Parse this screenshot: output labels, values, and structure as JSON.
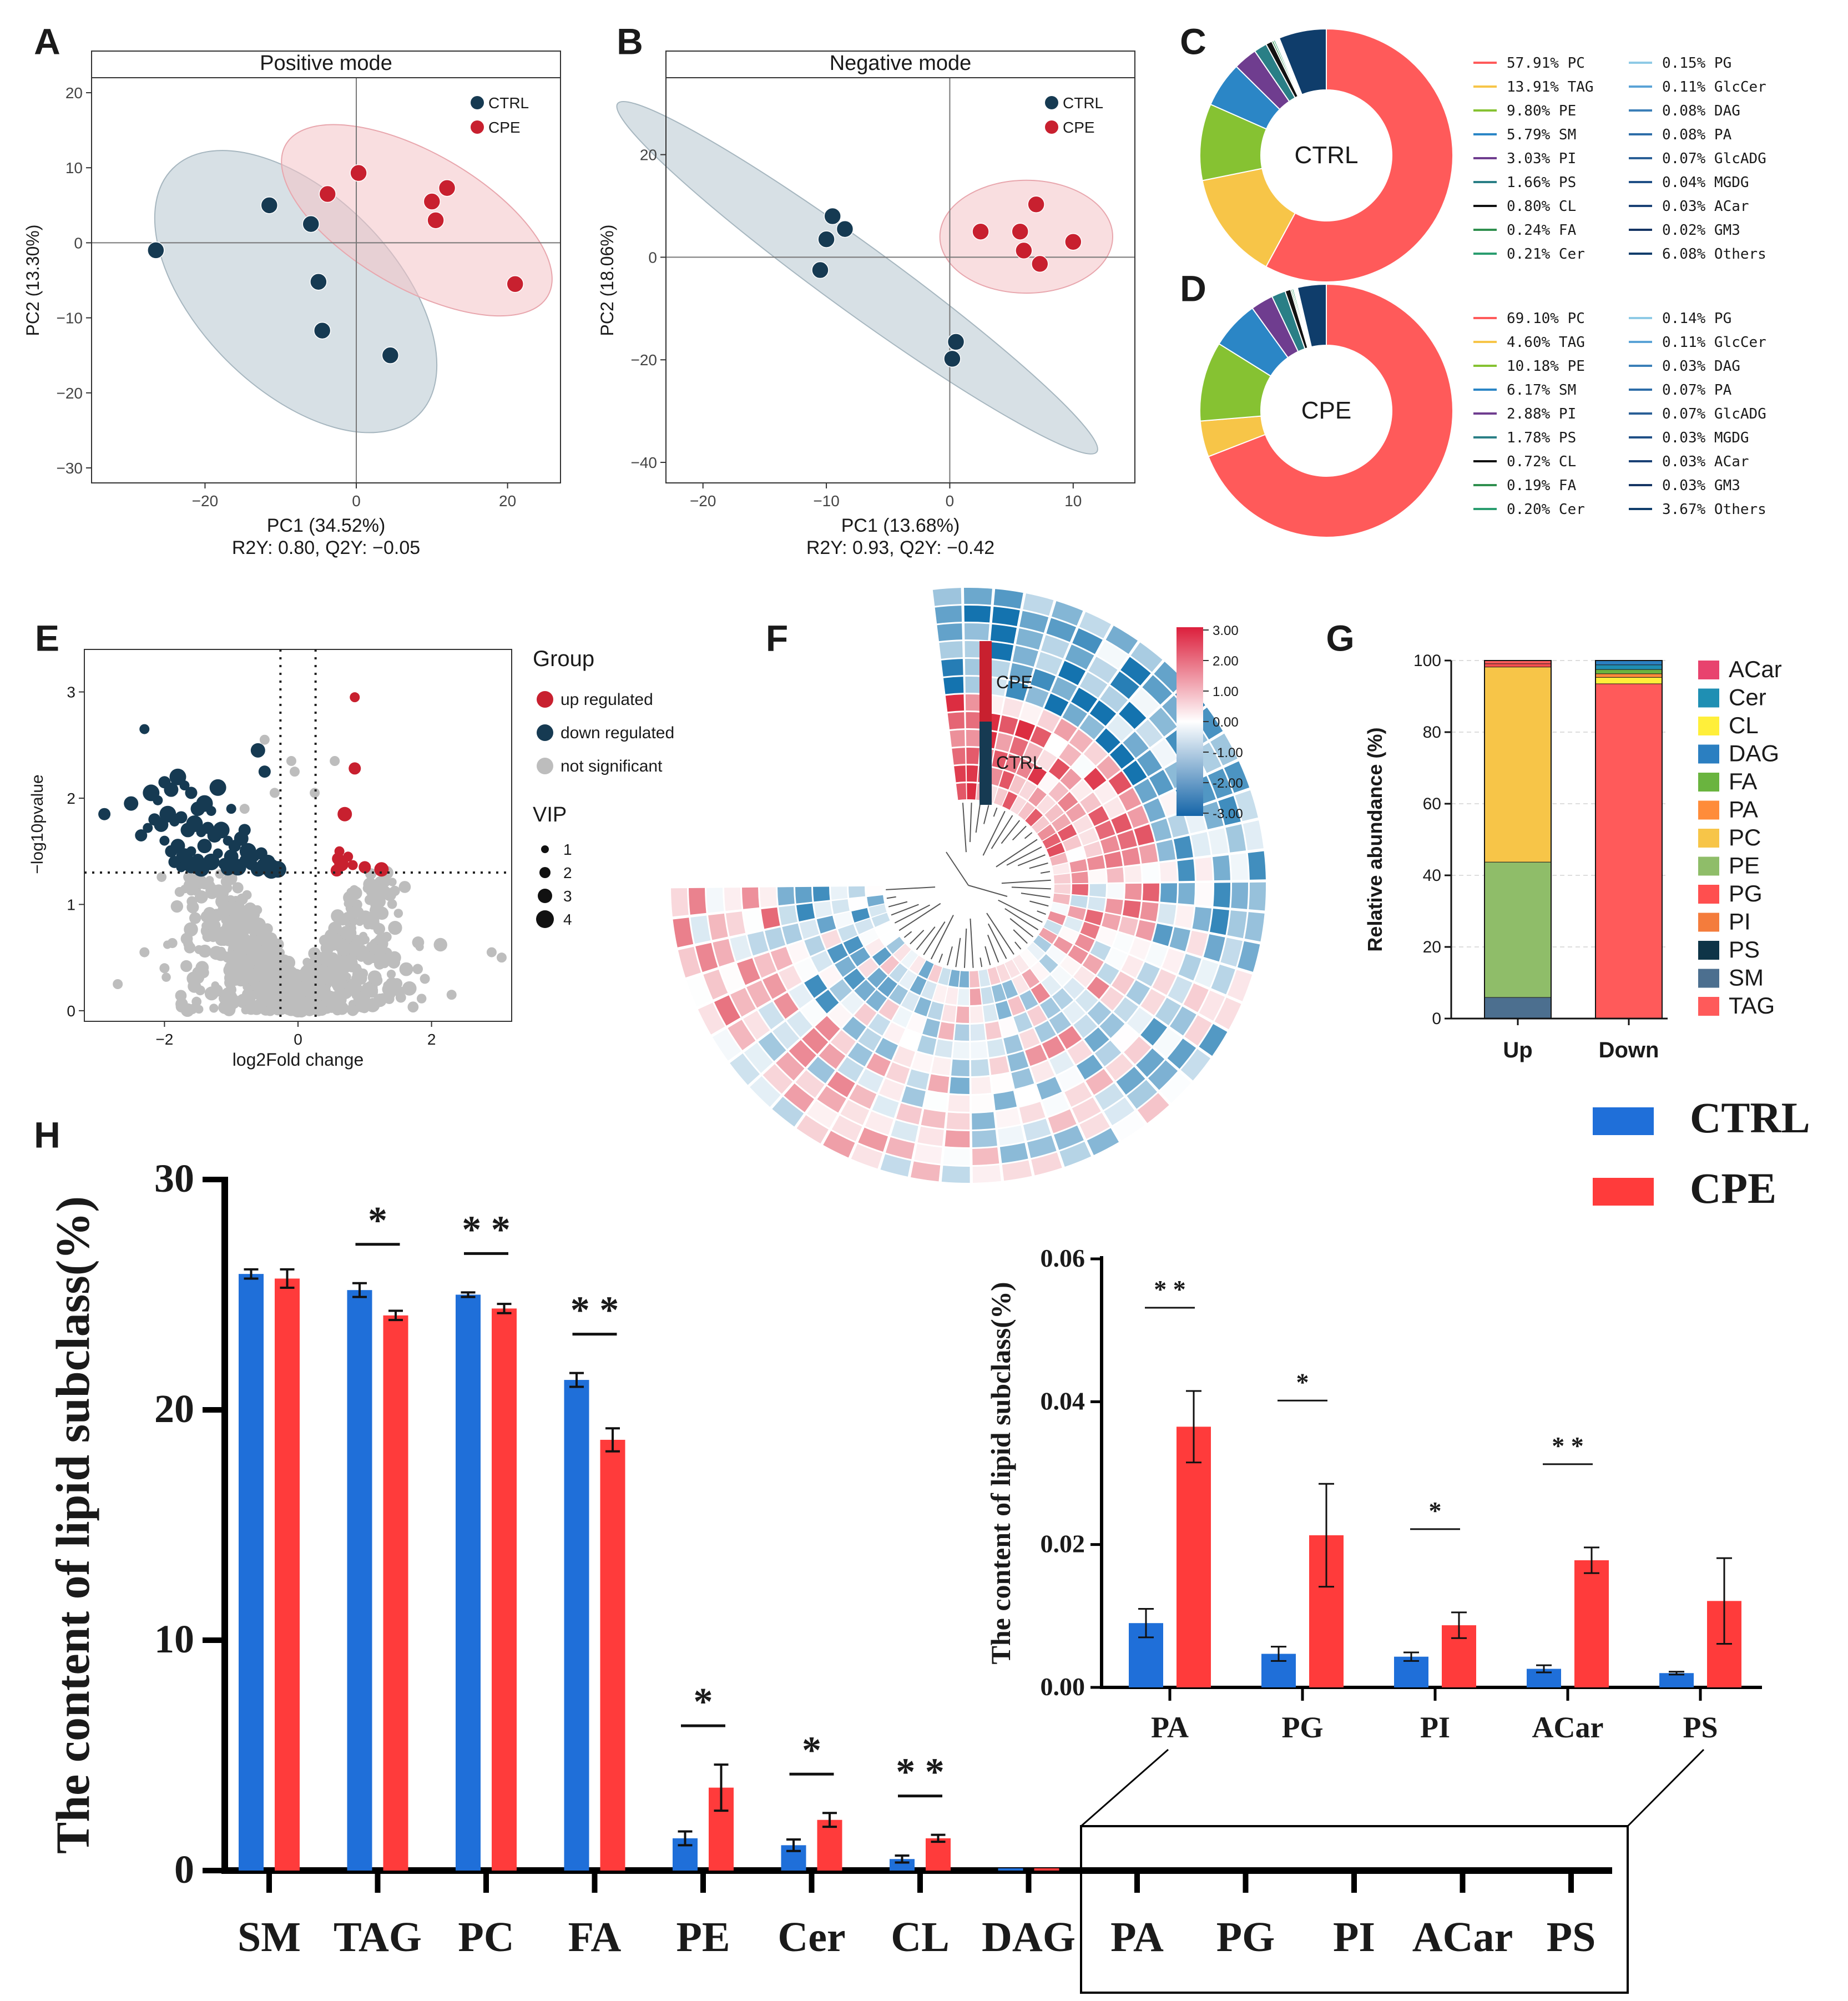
{
  "panel_labels": [
    "A",
    "B",
    "C",
    "D",
    "E",
    "F",
    "G",
    "H"
  ],
  "chart_data": [
    {
      "id": "A",
      "type": "scatter",
      "title": "Positive mode",
      "xlabel": "PC1 (34.52%)",
      "ylabel": "PC2 (13.30%)",
      "subtitle": "R2Y: 0.80, Q2Y: −0.05",
      "xlim": [
        -35,
        27
      ],
      "ylim": [
        -32,
        22
      ],
      "xticks": [
        -20,
        0,
        20
      ],
      "yticks": [
        -30,
        -20,
        -10,
        0,
        10,
        20
      ],
      "legend": [
        "CTRL",
        "CPE"
      ],
      "legend_position": "top-right",
      "colors": {
        "CTRL": "#163a52",
        "CPE": "#c8202f"
      },
      "series": [
        {
          "name": "CTRL",
          "x": [
            -26.5,
            -11.5,
            -6,
            -5,
            -4.5,
            4.5
          ],
          "y": [
            -1,
            5,
            2.5,
            -5.2,
            -11.7,
            -15
          ]
        },
        {
          "name": "CPE",
          "x": [
            -3.8,
            0.3,
            10,
            10.5,
            12,
            21
          ],
          "y": [
            6.5,
            9.3,
            5.5,
            3,
            7.3,
            -5.5
          ]
        }
      ]
    },
    {
      "id": "B",
      "type": "scatter",
      "title": "Negative mode",
      "xlabel": "PC1 (13.68%)",
      "ylabel": "PC2 (18.06%)",
      "subtitle": "R2Y: 0.93, Q2Y: −0.42",
      "xlim": [
        -23,
        15
      ],
      "ylim": [
        -44,
        35
      ],
      "xticks": [
        -20,
        -10,
        0,
        10
      ],
      "yticks": [
        -40,
        -20,
        0,
        20
      ],
      "legend": [
        "CTRL",
        "CPE"
      ],
      "legend_position": "top-right",
      "series": [
        {
          "name": "CTRL",
          "x": [
            -9.5,
            -10,
            -8.5,
            -10.5,
            0.5,
            0.2
          ],
          "y": [
            8,
            3.5,
            5.5,
            -2.5,
            -16.5,
            -19.8
          ]
        },
        {
          "name": "CPE",
          "x": [
            2.5,
            7,
            5.7,
            6,
            7.3,
            10
          ],
          "y": [
            5,
            10.3,
            5,
            1.3,
            -1.3,
            3
          ]
        }
      ]
    },
    {
      "id": "C",
      "type": "pie",
      "center_label": "CTRL",
      "labels": [
        "PC",
        "TAG",
        "PE",
        "SM",
        "PI",
        "PS",
        "CL",
        "FA",
        "Cer",
        "PG",
        "GlcCer",
        "DAG",
        "PA",
        "GlcADG",
        "MGDG",
        "ACar",
        "GM3",
        "Others"
      ],
      "values": [
        57.91,
        13.91,
        9.8,
        5.79,
        3.03,
        1.66,
        0.8,
        0.24,
        0.21,
        0.15,
        0.11,
        0.08,
        0.08,
        0.07,
        0.04,
        0.03,
        0.02,
        6.08
      ],
      "legend_text": [
        "57.91%  PC",
        "13.91%  TAG",
        "9.80%  PE",
        "5.79%  SM",
        "3.03%  PI",
        "1.66%  PS",
        "0.80%  CL",
        "0.24%  FA",
        "0.21%  Cer",
        "0.15%  PG",
        "0.11%  GlcCer",
        "0.08%  DAG",
        "0.08%  PA",
        "0.07%  GlcADG",
        "0.04%  MGDG",
        "0.03%  ACar",
        "0.02%  GM3",
        "6.08%  Others"
      ]
    },
    {
      "id": "D",
      "type": "pie",
      "center_label": "CPE",
      "labels": [
        "PC",
        "TAG",
        "PE",
        "SM",
        "PI",
        "PS",
        "CL",
        "FA",
        "Cer",
        "PG",
        "GlcCer",
        "DAG",
        "PA",
        "GlcADG",
        "MGDG",
        "ACar",
        "GM3",
        "Others"
      ],
      "values": [
        69.1,
        4.6,
        10.18,
        6.17,
        2.88,
        1.78,
        0.72,
        0.19,
        0.2,
        0.14,
        0.11,
        0.03,
        0.07,
        0.07,
        0.03,
        0.03,
        0.03,
        3.67
      ],
      "legend_text": [
        "69.10%  PC",
        "4.60%  TAG",
        "10.18%  PE",
        "6.17%  SM",
        "2.88%  PI",
        "1.78%  PS",
        "0.72%  CL",
        "0.19%  FA",
        "0.20%  Cer",
        "0.14%  PG",
        "0.11%  GlcCer",
        "0.03%  DAG",
        "0.07%  PA",
        "0.07%  GlcADG",
        "0.03%  MGDG",
        "0.03%  ACar",
        "0.03%  GM3",
        "3.67%  Others"
      ]
    },
    {
      "id": "E",
      "type": "scatter",
      "xlabel": "log2Fold change",
      "ylabel": "−log10pvalue",
      "xlim": [
        -3.2,
        3.2
      ],
      "ylim": [
        -0.1,
        3.4
      ],
      "xticks": [
        -2,
        0,
        2
      ],
      "yticks": [
        0,
        1,
        2,
        3
      ],
      "thresholds": {
        "x": [
          -0.263,
          0.263
        ],
        "y": 1.3
      },
      "legend_title": "Group",
      "legend": [
        "up regulated",
        "down regulated",
        "not significant"
      ],
      "size_legend_title": "VIP",
      "size_legend": [
        "1",
        "2",
        "3",
        "4"
      ],
      "colors": {
        "up regulated": "#c8202f",
        "down regulated": "#163a52",
        "not significant": "#bdbdbd"
      },
      "up": {
        "x": [
          0.85,
          0.85,
          0.7,
          0.62,
          0.6,
          0.65,
          0.82,
          1.0,
          1.25,
          0.75,
          0.58
        ],
        "y": [
          2.95,
          2.28,
          1.85,
          1.5,
          1.43,
          1.38,
          1.37,
          1.35,
          1.33,
          1.45,
          1.32
        ]
      },
      "down": {
        "x": [
          -2.3,
          -2.9,
          -2.5,
          -2.2,
          -2.1,
          -2.0,
          -1.9,
          -1.8,
          -1.7,
          -1.6,
          -1.5,
          -1.4,
          -1.3,
          -2.15,
          -2.05,
          -1.95,
          -1.85,
          -1.75,
          -1.65,
          -1.55,
          -1.45,
          -1.35,
          -1.25,
          -1.15,
          -1.05,
          -0.95,
          -0.85,
          -0.75,
          -0.65,
          -0.55,
          -0.45,
          -0.4,
          -2.0,
          -1.9,
          -1.8,
          -1.7,
          -1.6,
          -1.5,
          -1.4,
          -1.3,
          -1.2,
          -1.1,
          -1.0,
          -0.9,
          -0.8,
          -0.7,
          -0.6,
          -0.5,
          -0.45,
          -0.5,
          -0.6,
          -1.2,
          -1.0,
          -0.8,
          -0.35,
          -0.3,
          -1.75,
          -1.85,
          -1.6,
          -1.45,
          -2.25,
          -2.35,
          -1.05,
          -0.4
        ],
        "y": [
          2.65,
          1.85,
          1.95,
          2.05,
          1.98,
          2.15,
          2.08,
          2.2,
          2.12,
          2.05,
          1.9,
          1.95,
          1.88,
          1.8,
          1.75,
          1.85,
          1.78,
          1.82,
          1.7,
          1.76,
          1.68,
          1.72,
          1.65,
          1.7,
          1.6,
          1.55,
          1.62,
          1.5,
          1.45,
          1.48,
          1.4,
          1.35,
          1.6,
          1.5,
          1.55,
          1.45,
          1.5,
          1.42,
          1.55,
          1.4,
          1.48,
          1.38,
          1.45,
          1.35,
          1.42,
          1.38,
          1.33,
          1.36,
          1.32,
          2.25,
          2.45,
          2.1,
          1.9,
          1.7,
          1.32,
          1.33,
          1.35,
          1.4,
          1.36,
          1.34,
          1.72,
          1.65,
          1.34,
          1.32
        ]
      }
    },
    {
      "id": "F",
      "type": "heatmap",
      "groups": [
        "CPE",
        "CTRL"
      ],
      "colorbar_ticks": [
        "3.00",
        "2.00",
        "1.00",
        "0.00",
        "-1.00",
        "-2.00",
        "-3.00"
      ],
      "range": [
        -3,
        3
      ]
    },
    {
      "id": "G",
      "type": "bar",
      "stacked": true,
      "categories": [
        "Up",
        "Down"
      ],
      "ylabel": "Relative abundance (%)",
      "ylim": [
        0,
        100
      ],
      "yticks": [
        0,
        20,
        40,
        60,
        80,
        100
      ],
      "legend": [
        "ACar",
        "Cer",
        "CL",
        "DAG",
        "FA",
        "PA",
        "PC",
        "PE",
        "PG",
        "PI",
        "PS",
        "SM",
        "TAG"
      ],
      "colors": {
        "ACar": "#e8436e",
        "Cer": "#1f8fb3",
        "CL": "#ffef3a",
        "DAG": "#2b7fc1",
        "FA": "#6ab43f",
        "PA": "#ff8c3a",
        "PC": "#f7c548",
        "PE": "#8fbd69",
        "PG": "#ff4f4f",
        "PI": "#f47c3c",
        "PS": "#0e3447",
        "SM": "#4c6f8f",
        "TAG": "#ff5a5a"
      },
      "series": [
        {
          "name": "SM",
          "values": [
            5.9,
            0
          ]
        },
        {
          "name": "PE",
          "values": [
            37.8,
            0
          ]
        },
        {
          "name": "PC",
          "values": [
            54.5,
            0
          ]
        },
        {
          "name": "PG",
          "values": [
            0.9,
            0
          ]
        },
        {
          "name": "TAG",
          "values": [
            0.9,
            93.5
          ]
        },
        {
          "name": "CL",
          "values": [
            0,
            1.8
          ]
        },
        {
          "name": "PA",
          "values": [
            0,
            1.0
          ]
        },
        {
          "name": "FA",
          "values": [
            0,
            1.2
          ]
        },
        {
          "name": "Cer",
          "values": [
            0,
            1.3
          ]
        },
        {
          "name": "DAG",
          "values": [
            0,
            1.2
          ]
        }
      ]
    },
    {
      "id": "H",
      "type": "bar",
      "ylabel": "The content of lipid subclass(%)",
      "categories": [
        "SM",
        "TAG",
        "PC",
        "FA",
        "PE",
        "Cer",
        "CL",
        "DAG",
        "PA",
        "PG",
        "PI",
        "ACar",
        "PS"
      ],
      "ylim": [
        0,
        30
      ],
      "yticks": [
        0,
        10,
        20,
        30
      ],
      "legend": [
        "CTRL",
        "CPE"
      ],
      "legend_position": "top-right",
      "colors": {
        "CTRL": "#1f6fd9",
        "CPE": "#ff3b3b"
      },
      "series": [
        {
          "name": "CTRL",
          "values": [
            25.9,
            25.2,
            25.0,
            21.3,
            1.4,
            1.1,
            0.5,
            0.1,
            0,
            0,
            0,
            0,
            0
          ],
          "errors": [
            0.2,
            0.3,
            0.1,
            0.3,
            0.3,
            0.25,
            0.15,
            0,
            0,
            0,
            0,
            0,
            0
          ]
        },
        {
          "name": "CPE",
          "values": [
            25.7,
            24.1,
            24.4,
            18.7,
            3.6,
            2.2,
            1.4,
            0.1,
            0,
            0,
            0,
            0,
            0
          ],
          "errors": [
            0.4,
            0.2,
            0.2,
            0.5,
            1.0,
            0.3,
            0.15,
            0,
            0,
            0,
            0,
            0,
            0
          ]
        }
      ],
      "significance": [
        {
          "category": "TAG",
          "label": "*"
        },
        {
          "category": "PC",
          "label": "**"
        },
        {
          "category": "FA",
          "label": "**"
        },
        {
          "category": "PE",
          "label": "*"
        },
        {
          "category": "Cer",
          "label": "*"
        },
        {
          "category": "CL",
          "label": "**"
        }
      ],
      "inset": {
        "ylabel": "The content of lipid subclass(%)",
        "categories": [
          "PA",
          "PG",
          "PI",
          "ACar",
          "PS"
        ],
        "ylim": [
          0,
          0.06
        ],
        "yticks": [
          "0.00",
          "0.02",
          "0.04",
          "0.06"
        ],
        "series": [
          {
            "name": "CTRL",
            "values": [
              0.009,
              0.0047,
              0.0043,
              0.0026,
              0.002
            ],
            "errors": [
              0.002,
              0.001,
              0.0006,
              0.0005,
              0.0002
            ]
          },
          {
            "name": "CPE",
            "values": [
              0.0365,
              0.0213,
              0.0087,
              0.0178,
              0.0121
            ],
            "errors": [
              0.005,
              0.0072,
              0.0018,
              0.0018,
              0.006
            ]
          }
        ],
        "significance": [
          {
            "category": "PA",
            "label": "**"
          },
          {
            "category": "PG",
            "label": "*"
          },
          {
            "category": "PI",
            "label": "*"
          },
          {
            "category": "ACar",
            "label": "**"
          }
        ]
      }
    }
  ]
}
